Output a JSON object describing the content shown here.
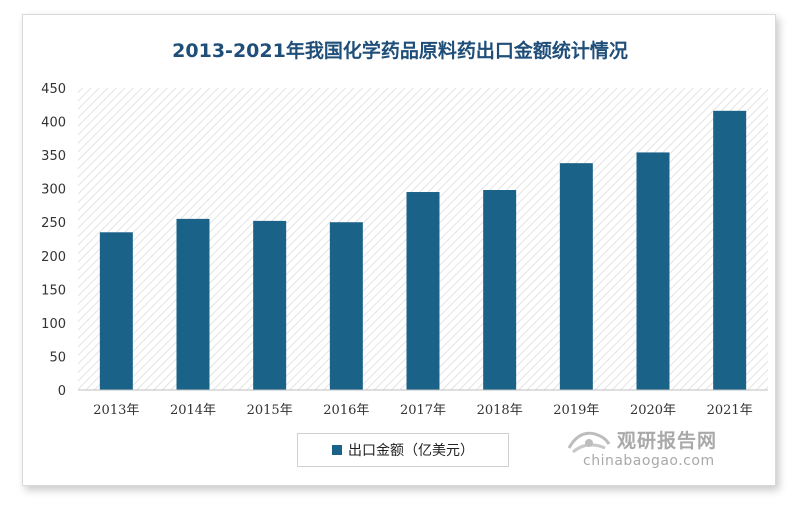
{
  "chart_data": {
    "type": "bar",
    "title": "2013-2021年我国化学药品原料药出口金额统计情况",
    "categories": [
      "2013年",
      "2014年",
      "2015年",
      "2016年",
      "2017年",
      "2018年",
      "2019年",
      "2020年",
      "2021年"
    ],
    "series": [
      {
        "name": "出口金额（亿美元）",
        "values": [
          235,
          255,
          252,
          250,
          295,
          298,
          338,
          354,
          416
        ]
      }
    ],
    "xlabel": "",
    "ylabel": "",
    "ylim": [
      0,
      450
    ],
    "yticks": [
      0,
      50,
      100,
      150,
      200,
      250,
      300,
      350,
      400,
      450
    ],
    "grid": false,
    "legend_position": "bottom",
    "bar_color": "#1b6289",
    "plot_background": "hatched light gray"
  },
  "watermark": {
    "brand_cn": "观研报告网",
    "url": "chinabaogao.com"
  }
}
